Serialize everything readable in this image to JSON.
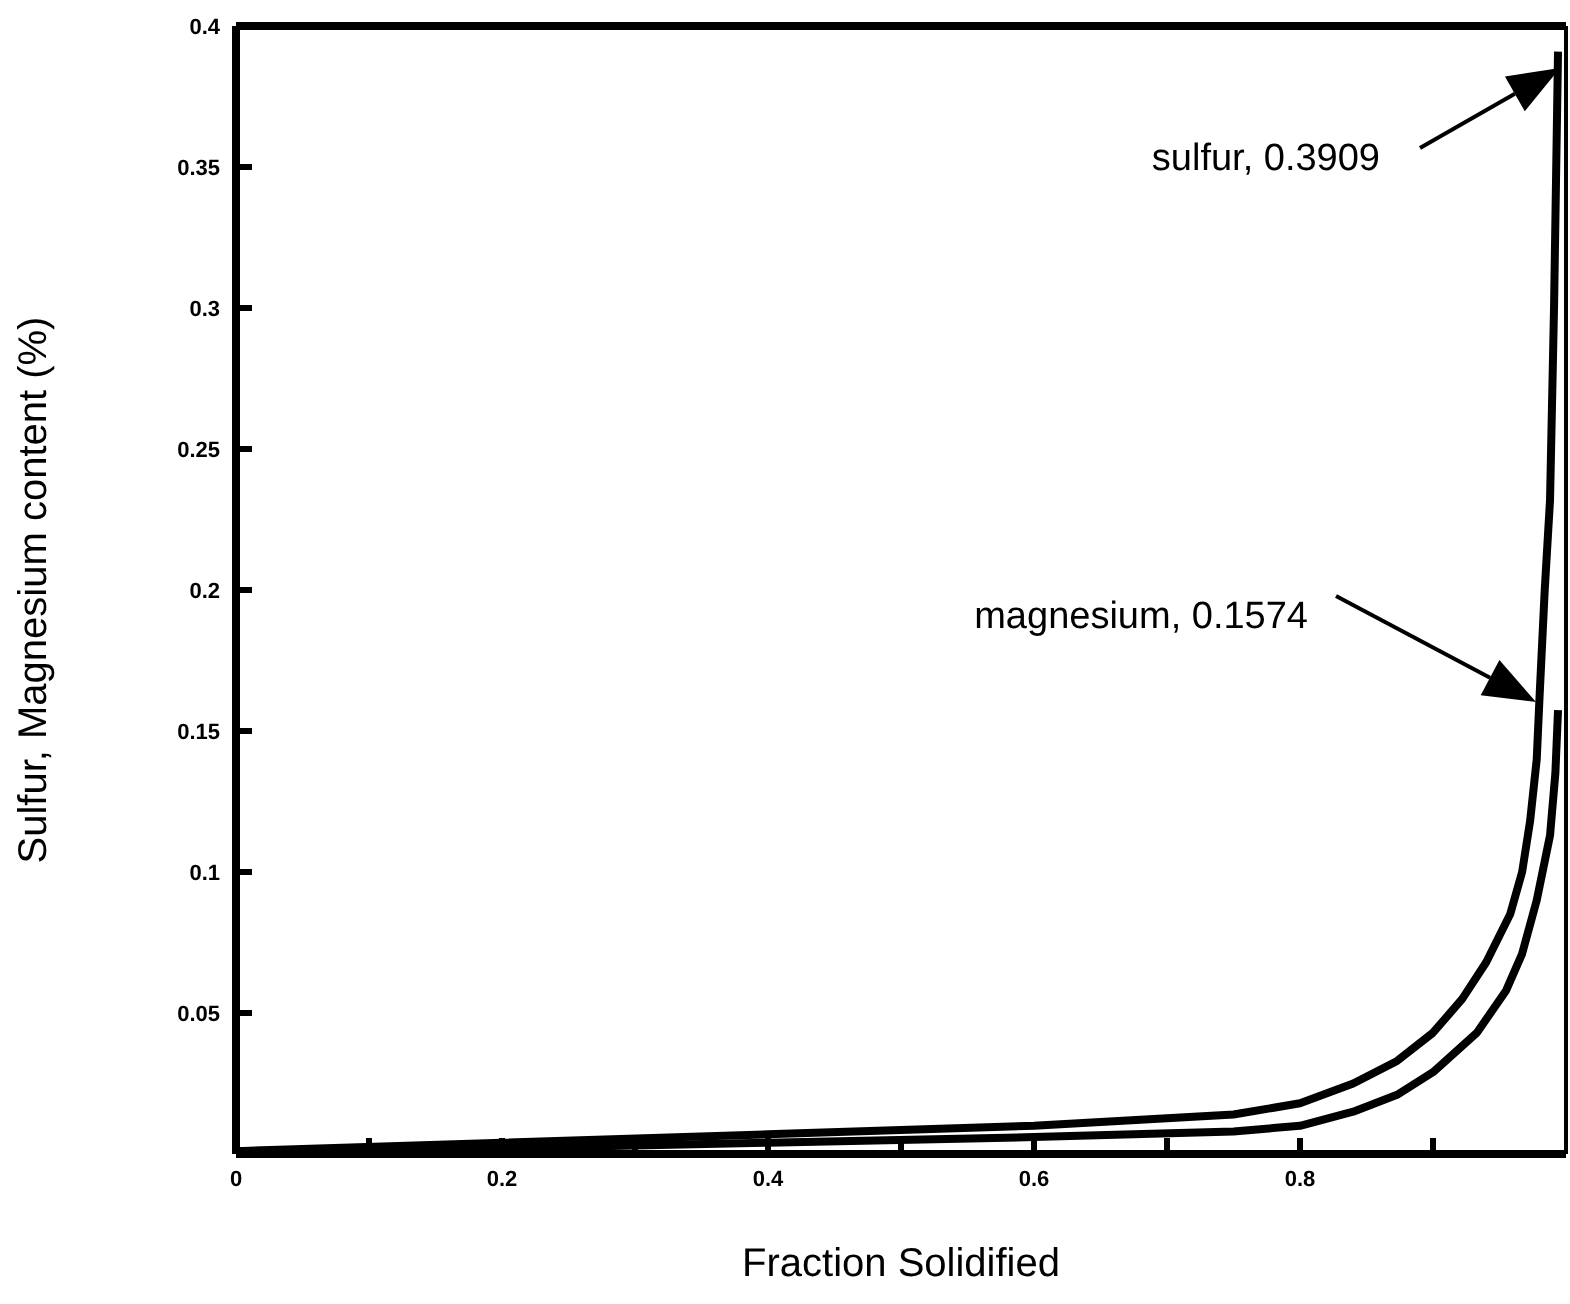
{
  "chart_data": {
    "type": "line",
    "xlabel": "Fraction Solidified",
    "ylabel": "Sulfur, Magnesium content (%)",
    "xlim": [
      0,
      1
    ],
    "ylim": [
      0,
      0.4
    ],
    "xticks": [
      0,
      {
        "value": 0.1,
        "label": null
      },
      0.2,
      {
        "value": 0.3,
        "label": null
      },
      0.4,
      {
        "value": 0.5,
        "label": null
      },
      0.6,
      {
        "value": 0.7,
        "label": null
      },
      0.8,
      {
        "value": 0.9,
        "label": null
      }
    ],
    "yticks": [
      0.05,
      0.1,
      0.15,
      0.2,
      0.25,
      0.3,
      0.35,
      0.4
    ],
    "marker": "none",
    "line_style": "solid",
    "series": [
      {
        "color": "#000000",
        "x": [
          0,
          0.2,
          0.4,
          0.6,
          0.75,
          0.8,
          0.84,
          0.873,
          0.9,
          0.922,
          0.94,
          0.958,
          0.967,
          0.973,
          0.978,
          0.98,
          0.984,
          0.988,
          0.991,
          0.994
        ],
        "values": [
          0.001,
          0.004,
          0.007,
          0.01,
          0.014,
          0.018,
          0.025,
          0.033,
          0.043,
          0.055,
          0.068,
          0.085,
          0.1,
          0.118,
          0.14,
          0.161,
          0.2,
          0.232,
          0.3,
          0.3909
        ]
      },
      {
        "color": "#000000",
        "x": [
          0,
          0.2,
          0.4,
          0.6,
          0.75,
          0.8,
          0.84,
          0.873,
          0.9,
          0.933,
          0.955,
          0.967,
          0.978,
          0.988,
          0.992,
          0.994
        ],
        "values": [
          0.001,
          0.002,
          0.004,
          0.006,
          0.008,
          0.01,
          0.015,
          0.021,
          0.029,
          0.043,
          0.058,
          0.071,
          0.09,
          0.113,
          0.135,
          0.1574
        ]
      }
    ],
    "annotations": [
      "sulfur, 0.3909",
      "magnesium, 0.1574"
    ]
  }
}
